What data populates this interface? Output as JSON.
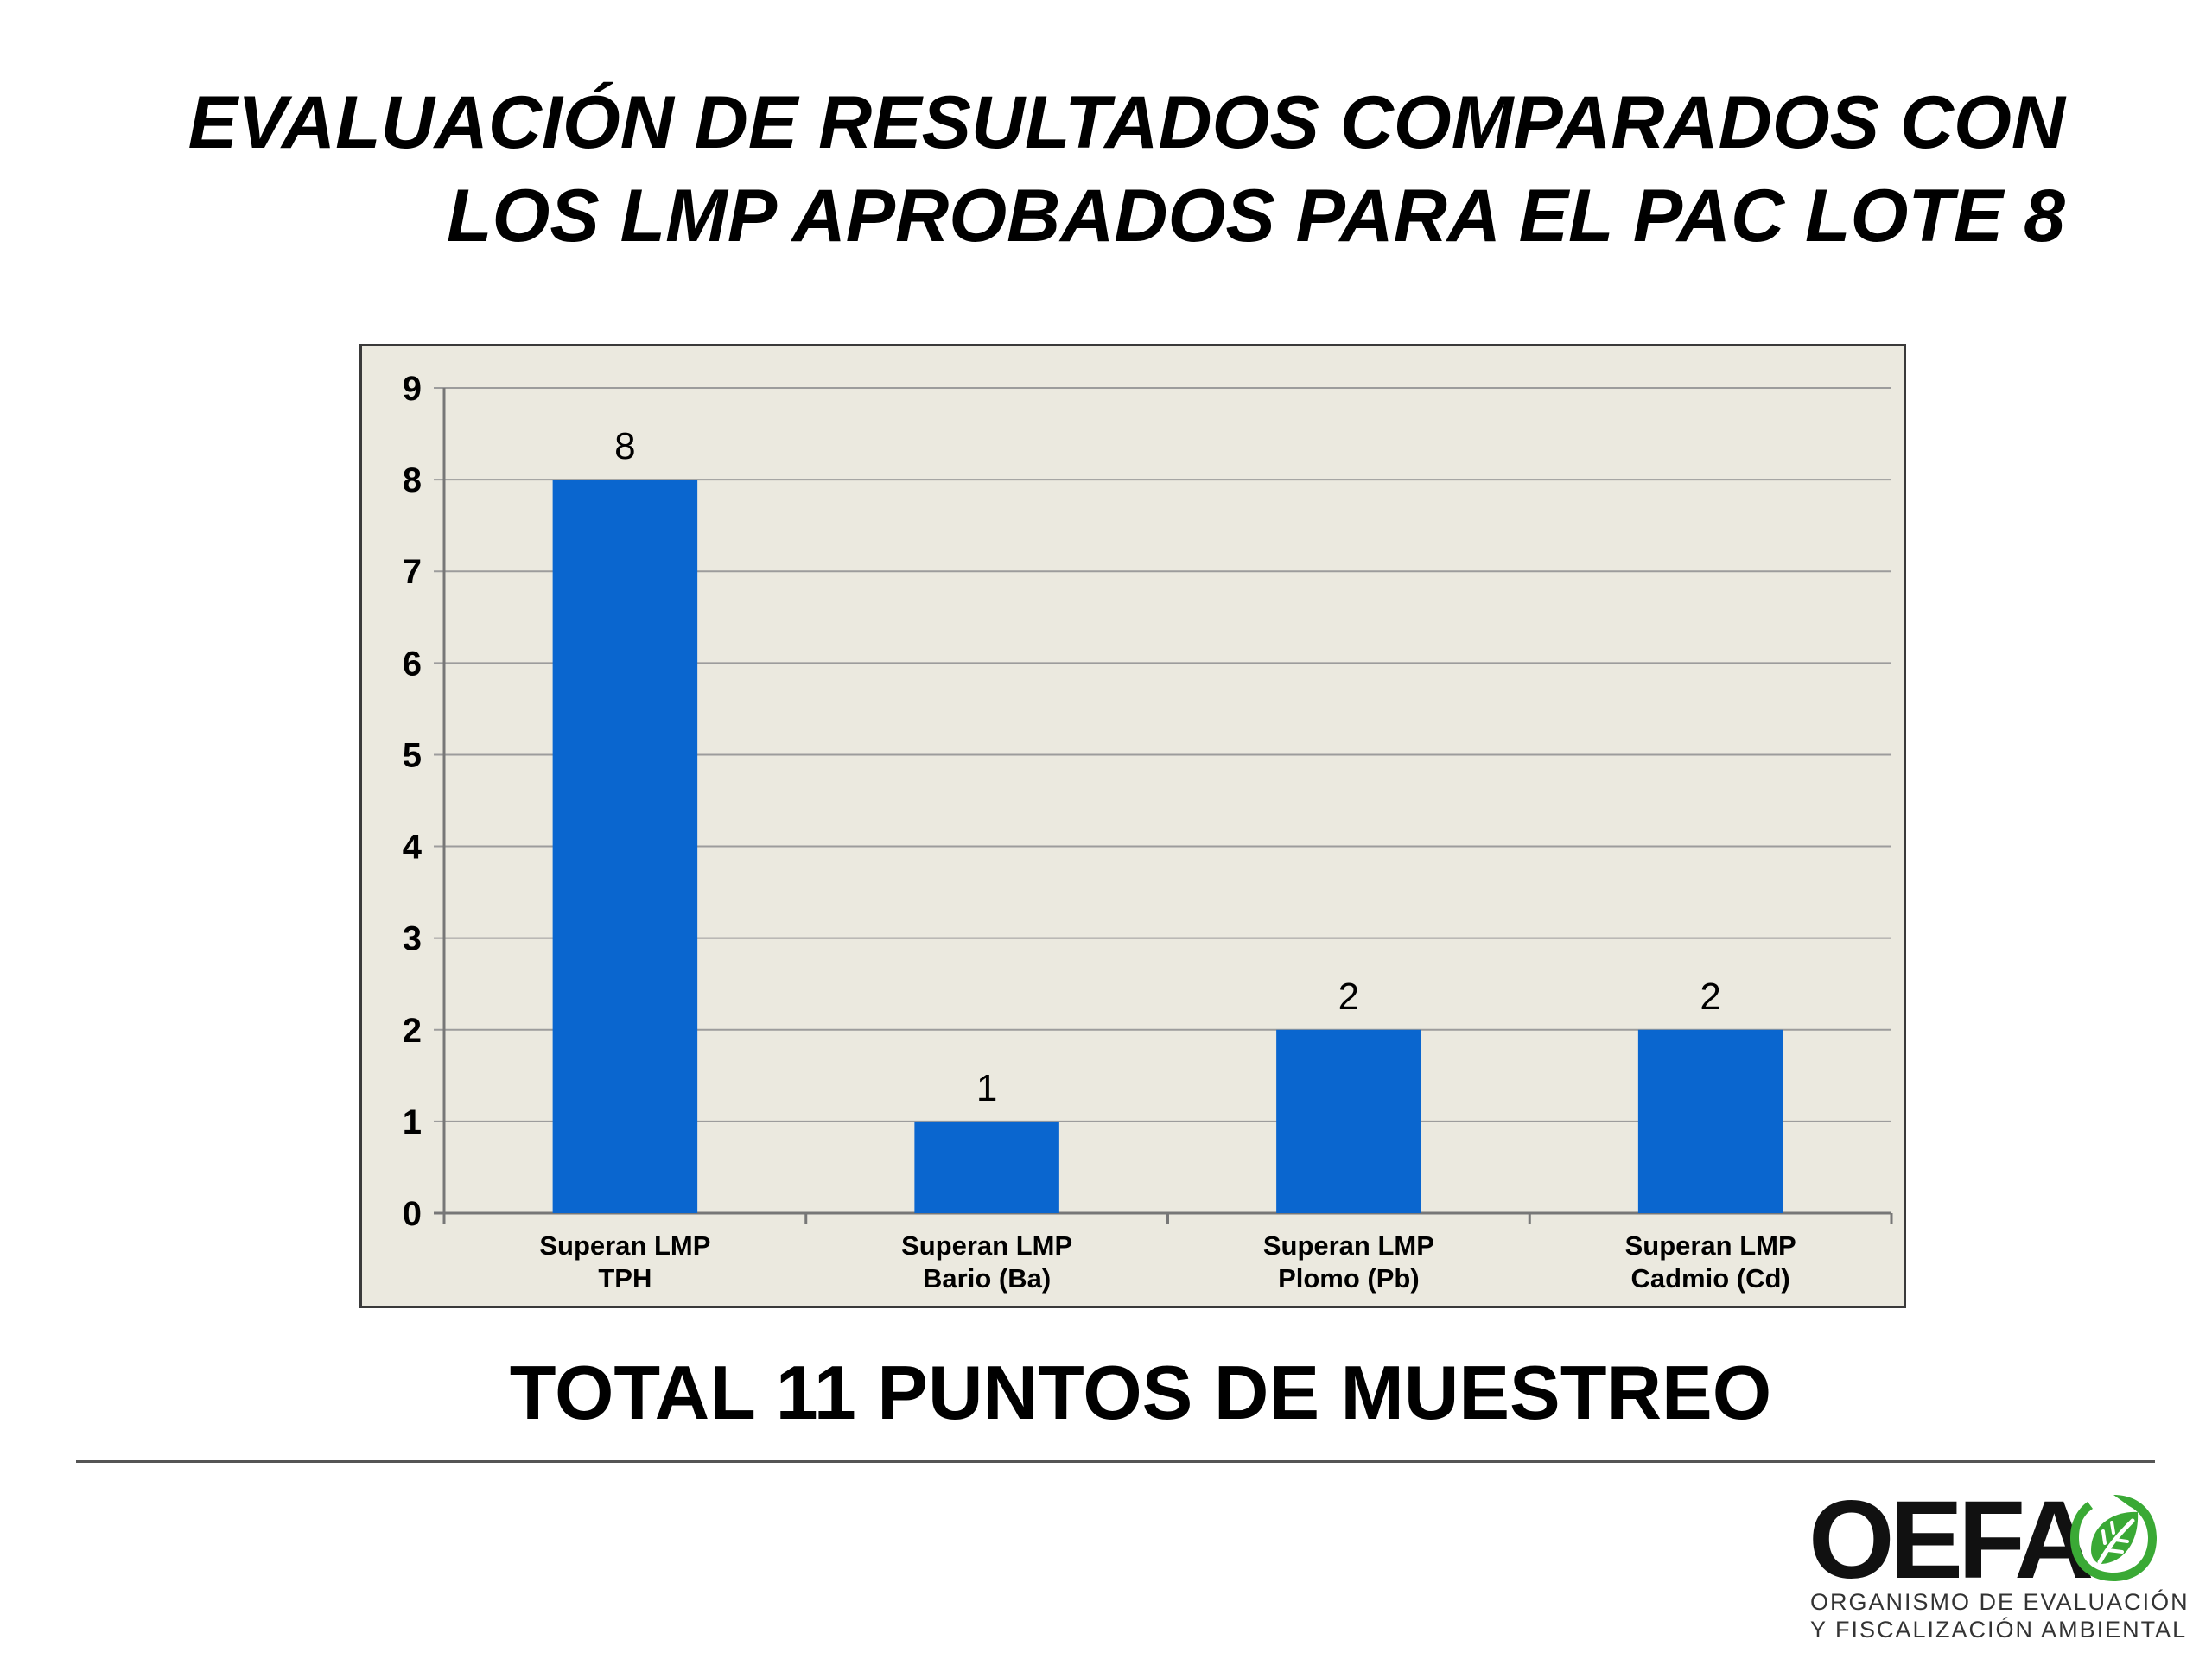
{
  "slide": {
    "title_line1": "EVALUACIÓN DE RESULTADOS COMPARADOS CON",
    "title_line2": "LOS LMP APROBADOS PARA EL PAC LOTE 8",
    "summary": "TOTAL 11 PUNTOS DE MUESTREO"
  },
  "logo": {
    "wordmark": "OEFA",
    "caption_line1": "ORGANISMO DE EVALUACIÓN",
    "caption_line2": "Y FISCALIZACIÓN AMBIENTAL",
    "icon": "leaf-icon",
    "color": "#3aa935"
  },
  "chart_data": {
    "type": "bar",
    "categories": [
      [
        "Superan LMP",
        "TPH"
      ],
      [
        "Superan LMP",
        "Bario (Ba)"
      ],
      [
        "Superan LMP",
        "Plomo (Pb)"
      ],
      [
        "Superan LMP",
        "Cadmio (Cd)"
      ]
    ],
    "values": [
      8,
      1,
      2,
      2
    ],
    "ylim": [
      0,
      9
    ],
    "yticks": [
      0,
      1,
      2,
      3,
      4,
      5,
      6,
      7,
      8,
      9
    ],
    "grid": true,
    "data_labels": true,
    "bar_color": "#0a66cf",
    "background_color": "#ebe9df",
    "title": "",
    "xlabel": "",
    "ylabel": ""
  }
}
